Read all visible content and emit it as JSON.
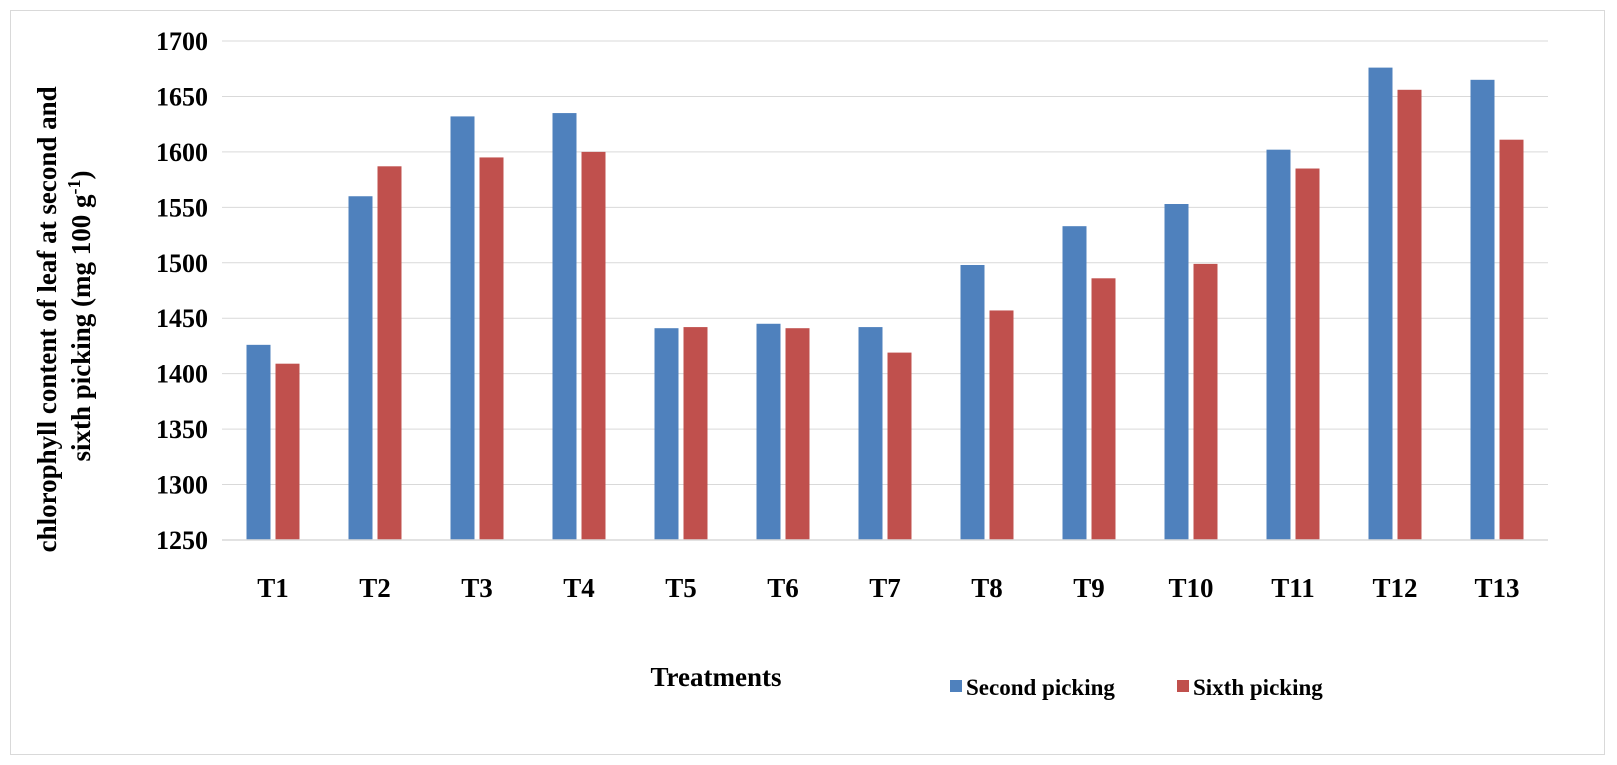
{
  "chart_data": {
    "type": "bar",
    "title": "",
    "xlabel": "Treatments",
    "ylabel": {
      "line1": "chlorophyll content of leaf at second and",
      "line2_main": "sixth picking (mg 100 g",
      "line2_sup": "-1",
      "line2_end": ")"
    },
    "ylim": [
      1250,
      1700
    ],
    "yticks": [
      1250,
      1300,
      1350,
      1400,
      1450,
      1500,
      1550,
      1600,
      1650,
      1700
    ],
    "grid": true,
    "legend_position": "bottom-right",
    "categories": [
      "T1",
      "T2",
      "T3",
      "T4",
      "T5",
      "T6",
      "T7",
      "T8",
      "T9",
      "T10",
      "T11",
      "T12",
      "T13"
    ],
    "series": [
      {
        "name": "Second picking",
        "color": "#4f81bd",
        "values": [
          1426,
          1560,
          1632,
          1635,
          1441,
          1445,
          1442,
          1498,
          1533,
          1553,
          1602,
          1676,
          1665
        ]
      },
      {
        "name": "Sixth picking",
        "color": "#c0504d",
        "values": [
          1409,
          1587,
          1595,
          1600,
          1442,
          1441,
          1419,
          1457,
          1486,
          1499,
          1585,
          1656,
          1611
        ]
      }
    ]
  }
}
